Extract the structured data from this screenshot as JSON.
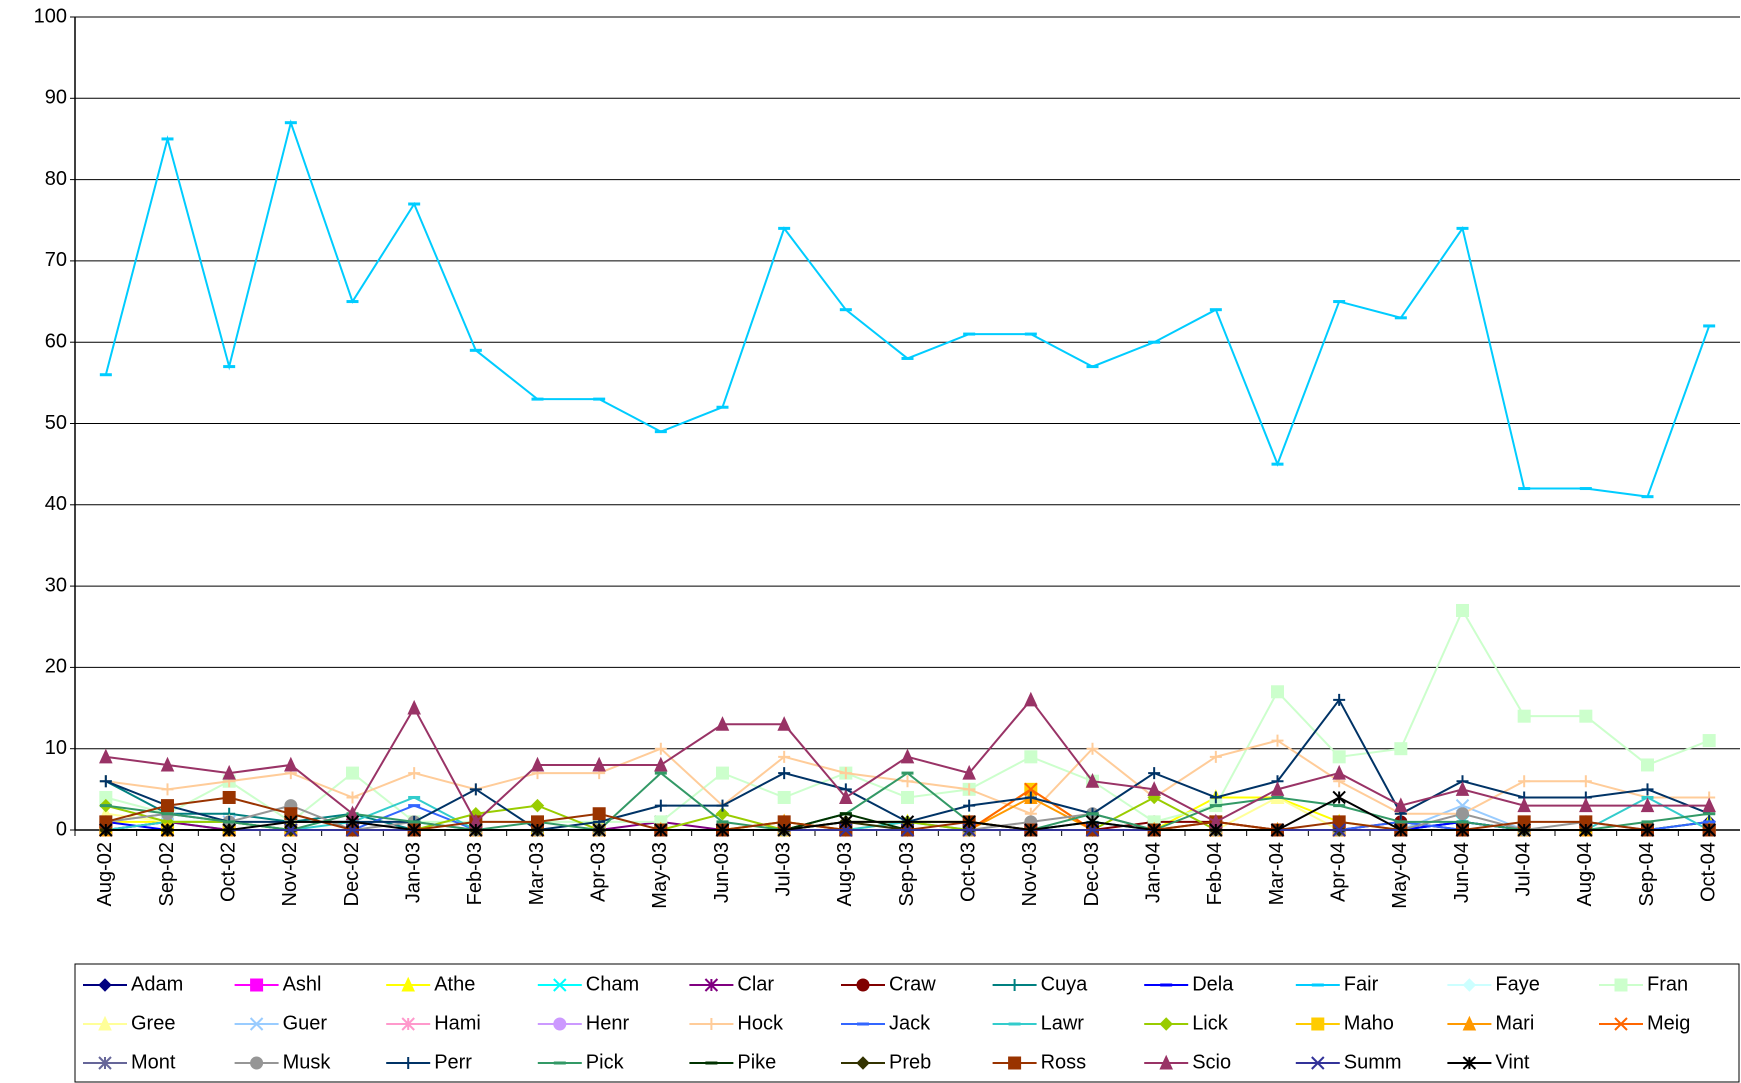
{
  "chart_data": {
    "type": "line",
    "categories": [
      "Aug-02",
      "Sep-02",
      "Oct-02",
      "Nov-02",
      "Dec-02",
      "Jan-03",
      "Feb-03",
      "Mar-03",
      "Apr-03",
      "May-03",
      "Jun-03",
      "Jul-03",
      "Aug-03",
      "Sep-03",
      "Oct-03",
      "Nov-03",
      "Dec-03",
      "Jan-04",
      "Feb-04",
      "Mar-04",
      "Apr-04",
      "May-04",
      "Jun-04",
      "Jul-04",
      "Aug-04",
      "Sep-04",
      "Oct-04"
    ],
    "ylim": [
      0,
      100
    ],
    "yticks": [
      0,
      10,
      20,
      30,
      40,
      50,
      60,
      70,
      80,
      90,
      100
    ],
    "grid": true,
    "legend": "bottom",
    "series": [
      {
        "name": "Adam",
        "color": "#000080",
        "marker": "diamond",
        "values": [
          0,
          0,
          0,
          0,
          0,
          0,
          0,
          0,
          0,
          0,
          0,
          0,
          0,
          0,
          0,
          0,
          0,
          0,
          0,
          0,
          0,
          0,
          0,
          0,
          0,
          0,
          1
        ]
      },
      {
        "name": "Ashl",
        "color": "#ff00ff",
        "marker": "square",
        "values": [
          0,
          0,
          0,
          0,
          0,
          0,
          0,
          0,
          0,
          0,
          0,
          0,
          0,
          0,
          0,
          0,
          0,
          0,
          0,
          0,
          0,
          0,
          0,
          0,
          0,
          0,
          0
        ]
      },
      {
        "name": "Athe",
        "color": "#ffff00",
        "marker": "triangle",
        "values": [
          1,
          1,
          0,
          0,
          0,
          0,
          0,
          0,
          0,
          0,
          0,
          1,
          0,
          1,
          1,
          0,
          0,
          0,
          4,
          4,
          1,
          0,
          0,
          0,
          0,
          0,
          1
        ]
      },
      {
        "name": "Cham",
        "color": "#00ffff",
        "marker": "x",
        "values": [
          0,
          1,
          0,
          0,
          0,
          0,
          0,
          0,
          0,
          0,
          0,
          0,
          0,
          0,
          0,
          0,
          0,
          0,
          0,
          0,
          0,
          0,
          1,
          0,
          0,
          0,
          0
        ]
      },
      {
        "name": "Clar",
        "color": "#800080",
        "marker": "star",
        "values": [
          0,
          1,
          0,
          0,
          0,
          0,
          0,
          0,
          0,
          1,
          0,
          0,
          0,
          0,
          0,
          0,
          0,
          0,
          0,
          0,
          0,
          0,
          0,
          0,
          0,
          0,
          0
        ]
      },
      {
        "name": "Craw",
        "color": "#800000",
        "marker": "circle",
        "values": [
          0,
          0,
          0,
          0,
          0,
          0,
          0,
          0,
          0,
          0,
          0,
          0,
          0,
          0,
          0,
          0,
          0,
          1,
          1,
          0,
          0,
          1,
          0,
          0,
          0,
          0,
          0
        ]
      },
      {
        "name": "Cuya",
        "color": "#008080",
        "marker": "plus",
        "values": [
          6,
          2,
          2,
          1,
          2,
          0,
          0,
          0,
          0,
          0,
          0,
          0,
          0,
          0,
          0,
          0,
          1,
          0,
          0,
          0,
          0,
          0,
          1,
          0,
          0,
          0,
          1
        ]
      },
      {
        "name": "Dela",
        "color": "#0000ff",
        "marker": "dash",
        "values": [
          1,
          0,
          0,
          0,
          0,
          0,
          0,
          0,
          0,
          0,
          0,
          0,
          0,
          0,
          0,
          0,
          0,
          0,
          0,
          0,
          0,
          0,
          1,
          0,
          0,
          0,
          0
        ]
      },
      {
        "name": "Fair",
        "color": "#00ccff",
        "marker": "dash",
        "values": [
          56,
          85,
          57,
          87,
          65,
          77,
          59,
          53,
          53,
          49,
          52,
          74,
          64,
          58,
          61,
          61,
          57,
          60,
          64,
          45,
          65,
          63,
          74,
          42,
          42,
          41,
          62
        ]
      },
      {
        "name": "Faye",
        "color": "#ccffff",
        "marker": "diamond",
        "values": [
          0,
          0,
          0,
          0,
          0,
          0,
          0,
          0,
          0,
          0,
          0,
          0,
          0,
          0,
          0,
          0,
          0,
          0,
          0,
          0,
          0,
          0,
          0,
          0,
          0,
          0,
          0
        ]
      },
      {
        "name": "Fran",
        "color": "#ccffcc",
        "marker": "square",
        "values": [
          4,
          2,
          6,
          1,
          7,
          1,
          1,
          1,
          1,
          1,
          7,
          4,
          7,
          4,
          5,
          9,
          6,
          1,
          3,
          17,
          9,
          10,
          27,
          14,
          14,
          8,
          11
        ]
      },
      {
        "name": "Gree",
        "color": "#ffff99",
        "marker": "triangle",
        "values": [
          2,
          1,
          1,
          0,
          0,
          0,
          0,
          0,
          0,
          0,
          0,
          0,
          0,
          0,
          0,
          0,
          0,
          0,
          0,
          4,
          0,
          0,
          0,
          0,
          0,
          0,
          0
        ]
      },
      {
        "name": "Guer",
        "color": "#99ccff",
        "marker": "x",
        "values": [
          1,
          2,
          1,
          0,
          0,
          0,
          0,
          0,
          0,
          0,
          0,
          0,
          0,
          0,
          0,
          0,
          0,
          0,
          0,
          0,
          0,
          0,
          3,
          0,
          0,
          0,
          0
        ]
      },
      {
        "name": "Hami",
        "color": "#ff99cc",
        "marker": "star",
        "values": [
          0,
          0,
          0,
          0,
          0,
          0,
          0,
          0,
          0,
          0,
          0,
          0,
          0,
          0,
          0,
          0,
          0,
          0,
          0,
          0,
          0,
          0,
          0,
          0,
          0,
          0,
          0
        ]
      },
      {
        "name": "Henr",
        "color": "#cc99ff",
        "marker": "circle",
        "values": [
          0,
          0,
          0,
          0,
          0,
          0,
          0,
          0,
          0,
          0,
          0,
          0,
          0,
          0,
          0,
          0,
          0,
          0,
          0,
          0,
          0,
          0,
          0,
          0,
          0,
          0,
          0
        ]
      },
      {
        "name": "Hock",
        "color": "#ffcc99",
        "marker": "plus",
        "values": [
          6,
          5,
          6,
          7,
          4,
          7,
          5,
          7,
          7,
          10,
          3,
          9,
          7,
          6,
          5,
          2,
          10,
          4,
          9,
          11,
          6,
          2,
          2,
          6,
          6,
          4,
          4
        ]
      },
      {
        "name": "Jack",
        "color": "#3366ff",
        "marker": "dash",
        "values": [
          0,
          0,
          0,
          0,
          0,
          3,
          0,
          0,
          0,
          0,
          0,
          0,
          0,
          0,
          0,
          0,
          0,
          0,
          0,
          0,
          0,
          1,
          0,
          0,
          0,
          0,
          1
        ]
      },
      {
        "name": "Lawr",
        "color": "#33cccc",
        "marker": "dash",
        "values": [
          0,
          1,
          1,
          0,
          1,
          4,
          0,
          0,
          0,
          0,
          0,
          0,
          0,
          1,
          0,
          0,
          0,
          0,
          0,
          0,
          0,
          0,
          0,
          0,
          0,
          4,
          0
        ]
      },
      {
        "name": "Lick",
        "color": "#99cc00",
        "marker": "diamond",
        "values": [
          3,
          1,
          1,
          0,
          0,
          0,
          2,
          3,
          0,
          0,
          2,
          0,
          1,
          1,
          0,
          0,
          0,
          4,
          0,
          0,
          0,
          0,
          0,
          0,
          0,
          0,
          0
        ]
      },
      {
        "name": "Maho",
        "color": "#ffcc00",
        "marker": "square",
        "values": [
          0,
          0,
          0,
          0,
          0,
          0,
          0,
          0,
          0,
          0,
          0,
          0,
          0,
          0,
          0,
          5,
          0,
          0,
          0,
          0,
          0,
          0,
          0,
          0,
          0,
          0,
          0
        ]
      },
      {
        "name": "Mari",
        "color": "#ff9900",
        "marker": "triangle",
        "values": [
          0,
          0,
          0,
          0,
          0,
          0,
          0,
          0,
          0,
          0,
          0,
          1,
          0,
          0,
          0,
          4,
          0,
          0,
          0,
          0,
          0,
          0,
          0,
          0,
          0,
          0,
          0
        ]
      },
      {
        "name": "Meig",
        "color": "#ff6600",
        "marker": "x",
        "values": [
          0,
          0,
          0,
          0,
          0,
          0,
          0,
          0,
          0,
          0,
          0,
          0,
          0,
          0,
          0,
          5,
          0,
          0,
          1,
          0,
          0,
          0,
          0,
          0,
          0,
          0,
          0
        ]
      },
      {
        "name": "Mont",
        "color": "#666699",
        "marker": "star",
        "values": [
          0,
          0,
          0,
          0,
          0,
          0,
          0,
          0,
          0,
          0,
          0,
          0,
          0,
          0,
          0,
          0,
          0,
          0,
          0,
          0,
          0,
          0,
          0,
          0,
          0,
          0,
          0
        ]
      },
      {
        "name": "Musk",
        "color": "#969696",
        "marker": "circle",
        "values": [
          1,
          2,
          1,
          3,
          0,
          1,
          0,
          0,
          0,
          0,
          0,
          0,
          0,
          0,
          0,
          1,
          2,
          0,
          0,
          0,
          0,
          0,
          2,
          0,
          1,
          0,
          0
        ]
      },
      {
        "name": "Perr",
        "color": "#003366",
        "marker": "plus",
        "values": [
          6,
          3,
          1,
          1,
          1,
          1,
          5,
          0,
          1,
          3,
          3,
          7,
          5,
          1,
          3,
          4,
          2,
          7,
          4,
          6,
          16,
          2,
          6,
          4,
          4,
          5,
          2
        ]
      },
      {
        "name": "Pick",
        "color": "#339966",
        "marker": "dash",
        "values": [
          3,
          2,
          1,
          0,
          2,
          1,
          0,
          1,
          0,
          7,
          1,
          0,
          2,
          7,
          1,
          0,
          2,
          0,
          3,
          4,
          3,
          1,
          1,
          0,
          0,
          1,
          2
        ]
      },
      {
        "name": "Pike",
        "color": "#003300",
        "marker": "dash",
        "values": [
          0,
          0,
          0,
          0,
          0,
          0,
          0,
          0,
          0,
          0,
          0,
          0,
          2,
          0,
          0,
          0,
          0,
          0,
          0,
          0,
          0,
          0,
          0,
          0,
          0,
          0,
          0
        ]
      },
      {
        "name": "Preb",
        "color": "#333300",
        "marker": "diamond",
        "values": [
          0,
          0,
          0,
          0,
          0,
          0,
          0,
          0,
          0,
          0,
          0,
          0,
          1,
          0,
          0,
          0,
          0,
          0,
          0,
          0,
          0,
          0,
          0,
          0,
          0,
          0,
          0
        ]
      },
      {
        "name": "Ross",
        "color": "#993300",
        "marker": "square",
        "values": [
          1,
          3,
          4,
          2,
          0,
          0,
          1,
          1,
          2,
          0,
          0,
          1,
          0,
          0,
          1,
          0,
          0,
          0,
          1,
          0,
          1,
          0,
          0,
          1,
          1,
          0,
          0
        ]
      },
      {
        "name": "Scio",
        "color": "#993366",
        "marker": "triangle",
        "values": [
          9,
          8,
          7,
          8,
          2,
          15,
          1,
          8,
          8,
          8,
          13,
          13,
          4,
          9,
          7,
          16,
          6,
          5,
          1,
          5,
          7,
          3,
          5,
          3,
          3,
          3,
          3
        ]
      },
      {
        "name": "Summ",
        "color": "#333399",
        "marker": "x",
        "values": [
          0,
          0,
          0,
          0,
          0,
          0,
          0,
          0,
          0,
          0,
          0,
          0,
          0,
          0,
          0,
          0,
          0,
          0,
          0,
          0,
          0,
          0,
          0,
          0,
          0,
          0,
          0
        ]
      },
      {
        "name": "Vint",
        "color": "#000000",
        "marker": "star",
        "values": [
          0,
          0,
          0,
          1,
          1,
          0,
          0,
          0,
          0,
          0,
          0,
          0,
          1,
          1,
          1,
          0,
          1,
          0,
          0,
          0,
          4,
          0,
          0,
          0,
          0,
          0,
          0
        ]
      }
    ]
  }
}
